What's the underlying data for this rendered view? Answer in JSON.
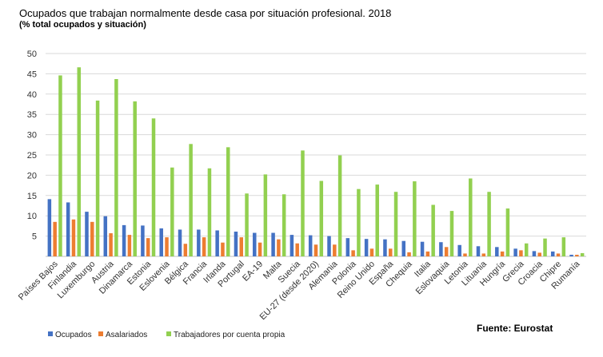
{
  "chart_data": {
    "type": "bar",
    "title": "Ocupados que trabajan normalmente desde casa por situación profesional. 2018",
    "subtitle": "(% total ocupados y situación)",
    "source": "Fuente: Eurostat",
    "xlabel": "",
    "ylabel": "",
    "ylim": [
      0,
      50
    ],
    "yticks": [
      5,
      10,
      15,
      20,
      25,
      30,
      35,
      40,
      45,
      50
    ],
    "grid": true,
    "legend_position": "bottom-left",
    "categories": [
      "Países Bajos",
      "Finlandia",
      "Luxemburgo",
      "Austria",
      "Dinamarca",
      "Estonia",
      "Eslovenia",
      "Bélgica",
      "Francia",
      "Irlanda",
      "Portugal",
      "EA-19",
      "Malta",
      "Suecia",
      "EU-27 (desde 2020)",
      "Alemania",
      "Polonia",
      "Reino Unido",
      "España",
      "Chequia",
      "Italia",
      "Eslovaquia",
      "Letonia",
      "Lituania",
      "Hungría",
      "Grecia",
      "Croacia",
      "Chipre",
      "Rumanía"
    ],
    "series": [
      {
        "name": "Ocupados",
        "color": "#4472C4",
        "values": [
          14.1,
          13.3,
          11.0,
          9.9,
          7.7,
          7.6,
          6.9,
          6.6,
          6.6,
          6.4,
          6.1,
          5.8,
          5.8,
          5.3,
          5.2,
          5.0,
          4.5,
          4.3,
          4.2,
          3.8,
          3.6,
          3.5,
          2.8,
          2.5,
          2.3,
          1.9,
          1.3,
          1.2,
          0.4
        ]
      },
      {
        "name": "Asalariados",
        "color": "#ED7D31",
        "values": [
          8.5,
          9.1,
          8.5,
          5.7,
          5.3,
          4.5,
          4.7,
          3.1,
          4.7,
          3.4,
          4.7,
          3.4,
          4.2,
          3.2,
          2.9,
          2.9,
          1.5,
          1.9,
          1.9,
          1.0,
          1.2,
          2.3,
          0.7,
          0.7,
          1.2,
          1.5,
          0.9,
          0.7,
          0.4
        ]
      },
      {
        "name": "Trabajadores por cuenta propia",
        "color": "#92D050",
        "values": [
          44.6,
          46.6,
          38.4,
          43.7,
          38.2,
          34.0,
          21.9,
          27.7,
          21.7,
          26.9,
          15.5,
          20.2,
          15.3,
          26.1,
          18.6,
          24.9,
          16.6,
          17.7,
          15.9,
          18.5,
          12.7,
          11.2,
          19.2,
          15.9,
          11.8,
          3.2,
          4.4,
          4.7,
          0.8
        ]
      }
    ]
  }
}
